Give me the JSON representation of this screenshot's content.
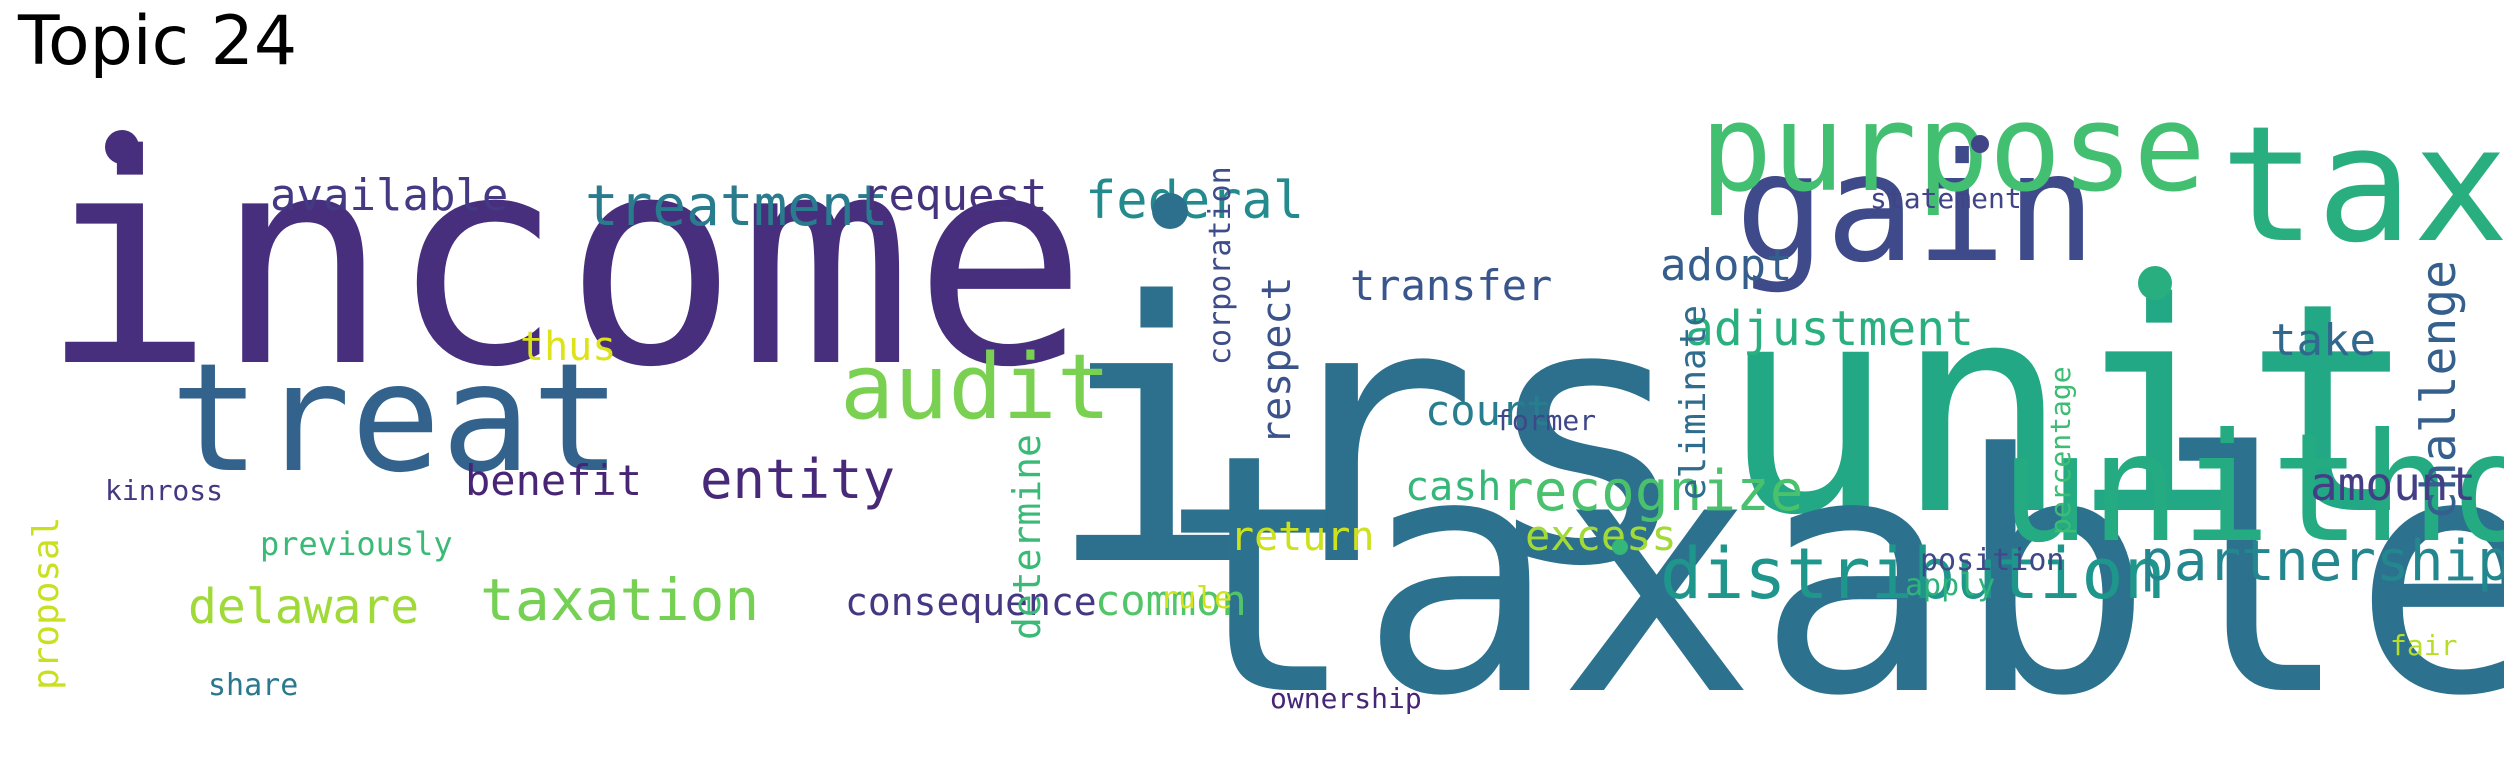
{
  "title": "Topic 24",
  "words": [
    {
      "text": "income",
      "color": "#472f7d"
    },
    {
      "text": "irs",
      "color": "#2d708e"
    },
    {
      "text": "unit",
      "color": "#22a884"
    },
    {
      "text": "taxable",
      "color": "#2c728e"
    },
    {
      "text": "gain",
      "color": "#3e4a89"
    },
    {
      "text": "tax",
      "color": "#29af7f"
    },
    {
      "text": "purpose",
      "color": "#43bf71"
    },
    {
      "text": "unitholders",
      "color": "#25ab82"
    },
    {
      "text": "treat",
      "color": "#33638d"
    },
    {
      "text": "audit",
      "color": "#7ad151"
    },
    {
      "text": "distribution",
      "color": "#1f968b"
    },
    {
      "text": "partnership",
      "color": "#24868e"
    },
    {
      "text": "taxation",
      "color": "#75d054"
    },
    {
      "text": "treatment",
      "color": "#297b8e"
    },
    {
      "text": "federal",
      "color": "#238a8d"
    },
    {
      "text": "entity",
      "color": "#482878"
    },
    {
      "text": "recognize",
      "color": "#4ac16d"
    },
    {
      "text": "delaware",
      "color": "#a0da39"
    },
    {
      "text": "adjustment",
      "color": "#2ab07f"
    },
    {
      "text": "challenge",
      "color": "#355f8d"
    },
    {
      "text": "request",
      "color": "#46337e"
    },
    {
      "text": "available",
      "color": "#443983"
    },
    {
      "text": "transfer",
      "color": "#39568c"
    },
    {
      "text": "adopt",
      "color": "#355e8d"
    },
    {
      "text": "take",
      "color": "#31688e"
    },
    {
      "text": "common",
      "color": "#52c569"
    },
    {
      "text": "consequence",
      "color": "#453781"
    },
    {
      "text": "benefit",
      "color": "#482475"
    },
    {
      "text": "amount",
      "color": "#433e85"
    },
    {
      "text": "court",
      "color": "#287d8e"
    },
    {
      "text": "respect",
      "color": "#3b528b"
    },
    {
      "text": "determine",
      "color": "#3aba76"
    },
    {
      "text": "eliminate",
      "color": "#2f6c8e"
    },
    {
      "text": "excess",
      "color": "#a2da37"
    },
    {
      "text": "cash",
      "color": "#35b779"
    },
    {
      "text": "return",
      "color": "#cde11d"
    },
    {
      "text": "thus",
      "color": "#dde318"
    },
    {
      "text": "proposal",
      "color": "#c8e020"
    },
    {
      "text": "previously",
      "color": "#3aba76"
    },
    {
      "text": "corporation",
      "color": "#3e4c8a"
    },
    {
      "text": "kinross",
      "color": "#453882"
    },
    {
      "text": "former",
      "color": "#3f4788"
    },
    {
      "text": "statement",
      "color": "#414487"
    },
    {
      "text": "position",
      "color": "#3f4889"
    },
    {
      "text": "percentage",
      "color": "#3dbc74"
    },
    {
      "text": "apply",
      "color": "#2eb37c"
    },
    {
      "text": "share",
      "color": "#2a788e"
    },
    {
      "text": "rule",
      "color": "#d2e21b"
    },
    {
      "text": "ownership",
      "color": "#482677"
    },
    {
      "text": "fair",
      "color": "#b8de29"
    }
  ],
  "dots": [
    {
      "name": "dot-1",
      "color": "#472f7d"
    },
    {
      "name": "dot-2",
      "color": "#2d708e"
    },
    {
      "name": "dot-3",
      "color": "#29af7f"
    },
    {
      "name": "dot-4",
      "color": "#414487"
    },
    {
      "name": "dot-5",
      "color": "#35b779"
    }
  ]
}
